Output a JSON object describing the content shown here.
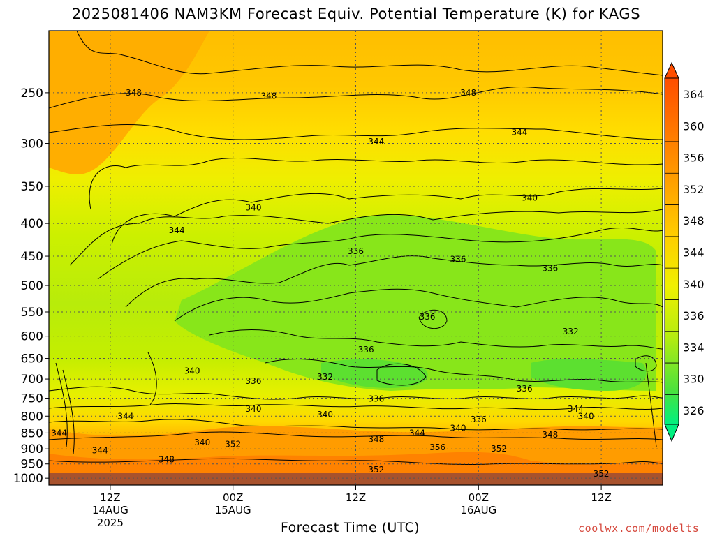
{
  "title": "2025081406 NAM3KM Forecast Equiv. Potential Temperature (K) for KAGS",
  "credit": "coolwx.com/modelts",
  "colors": {
    "ground": "#a8522d",
    "contour": "#000000",
    "grid": "#555555",
    "credit": "#d5473c"
  },
  "chart_data": {
    "type": "heatmap",
    "title": "2025081406 NAM3KM Forecast Equiv. Potential Temperature (K) for KAGS",
    "variable": "Equiv. Potential Temperature (K)",
    "station": "KAGS",
    "model": "NAM3KM",
    "init": "2025081406",
    "xlabel": "Forecast Time (UTC)",
    "ylabel": "",
    "x_ticks": [
      {
        "label": "12Z",
        "sub": "14AUG",
        "sub2": "2025",
        "hour": 6
      },
      {
        "label": "00Z",
        "sub": "15AUG",
        "sub2": "",
        "hour": 18
      },
      {
        "label": "12Z",
        "sub": "",
        "sub2": "",
        "hour": 30
      },
      {
        "label": "00Z",
        "sub": "16AUG",
        "sub2": "",
        "hour": 42
      },
      {
        "label": "12Z",
        "sub": "",
        "sub2": "",
        "hour": 54
      }
    ],
    "xlim_hours": [
      0,
      60
    ],
    "y_ticks": [
      250,
      300,
      350,
      400,
      450,
      500,
      550,
      600,
      650,
      700,
      750,
      800,
      850,
      900,
      950,
      1000
    ],
    "y_scale": "log pressure (hPa)",
    "ylim": [
      1025,
      200
    ],
    "grid": true,
    "colorbar": {
      "labels": [
        "364",
        "360",
        "356",
        "352",
        "348",
        "344",
        "340",
        "336",
        "334",
        "330",
        "326"
      ],
      "colors": [
        "#ff6a00",
        "#ff8c00",
        "#ffa500",
        "#ffbe00",
        "#ffd800",
        "#f5f000",
        "#ccf000",
        "#a8e81c",
        "#7ee000",
        "#3ee430",
        "#00f080"
      ]
    },
    "contour_labels": [
      {
        "t": "348",
        "hour": 8.3,
        "p": 250
      },
      {
        "t": "348",
        "hour": 21.5,
        "p": 253
      },
      {
        "t": "348",
        "hour": 41.0,
        "p": 250
      },
      {
        "t": "344",
        "hour": 32.0,
        "p": 298
      },
      {
        "t": "344",
        "hour": 46.0,
        "p": 288
      },
      {
        "t": "340",
        "hour": 20.0,
        "p": 378
      },
      {
        "t": "340",
        "hour": 47.0,
        "p": 365
      },
      {
        "t": "344",
        "hour": 12.5,
        "p": 410
      },
      {
        "t": "336",
        "hour": 30.0,
        "p": 442
      },
      {
        "t": "336",
        "hour": 40.0,
        "p": 455
      },
      {
        "t": "336",
        "hour": 49.0,
        "p": 470
      },
      {
        "t": "336",
        "hour": 37.0,
        "p": 560
      },
      {
        "t": "332",
        "hour": 51.0,
        "p": 590
      },
      {
        "t": "336",
        "hour": 31.0,
        "p": 630
      },
      {
        "t": "340",
        "hour": 14.0,
        "p": 680
      },
      {
        "t": "332",
        "hour": 27.0,
        "p": 695
      },
      {
        "t": "336",
        "hour": 20.0,
        "p": 705
      },
      {
        "t": "336",
        "hour": 46.5,
        "p": 725
      },
      {
        "t": "336",
        "hour": 32.0,
        "p": 752
      },
      {
        "t": "340",
        "hour": 20.0,
        "p": 780
      },
      {
        "t": "344",
        "hour": 7.5,
        "p": 800
      },
      {
        "t": "340",
        "hour": 27.0,
        "p": 795
      },
      {
        "t": "344",
        "hour": 51.5,
        "p": 780
      },
      {
        "t": "340",
        "hour": 52.5,
        "p": 800
      },
      {
        "t": "336",
        "hour": 42.0,
        "p": 810
      },
      {
        "t": "344",
        "hour": 1.0,
        "p": 850
      },
      {
        "t": "344",
        "hour": 5.0,
        "p": 905
      },
      {
        "t": "344",
        "hour": 36.0,
        "p": 850
      },
      {
        "t": "340",
        "hour": 40.0,
        "p": 835
      },
      {
        "t": "348",
        "hour": 32.0,
        "p": 870
      },
      {
        "t": "348",
        "hour": 49.0,
        "p": 855
      },
      {
        "t": "340",
        "hour": 15.0,
        "p": 880
      },
      {
        "t": "352",
        "hour": 18.0,
        "p": 885
      },
      {
        "t": "356",
        "hour": 38.0,
        "p": 895
      },
      {
        "t": "352",
        "hour": 44.0,
        "p": 900
      },
      {
        "t": "348",
        "hour": 11.5,
        "p": 935
      },
      {
        "t": "352",
        "hour": 32.0,
        "p": 970
      },
      {
        "t": "352",
        "hour": 54.0,
        "p": 985
      }
    ]
  }
}
